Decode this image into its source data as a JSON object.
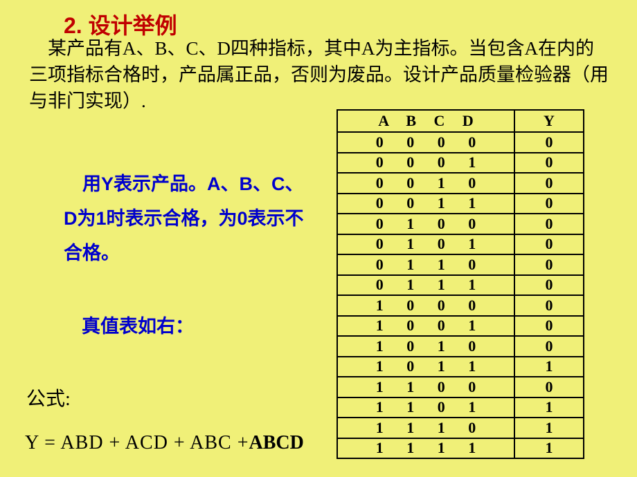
{
  "title": "2. 设计举例",
  "problem": "　某产品有A、B、C、D四种指标，其中A为主指标。当包含A在内的三项指标合格时，产品属正品，否则为废品。设计产品质量检验器（用与非门实现）.",
  "blue_text": "　用Y表示产品。A、B、C、D为1时表示合格，为0表示不合格。",
  "truth_label": "真值表如右：",
  "formula_label": "公式:",
  "formula_main": "Y = ABD + ACD + ABC ",
  "formula_plus": "+",
  "formula_abcd": "ABCD",
  "table": {
    "headers": {
      "abcd": "A  B  C  D",
      "y": "Y"
    },
    "rows": [
      {
        "abcd": "0 0 0 0",
        "y": "0"
      },
      {
        "abcd": "0 0 0 1",
        "y": "0"
      },
      {
        "abcd": "0 0 1 0",
        "y": "0"
      },
      {
        "abcd": "0 0 1 1",
        "y": "0"
      },
      {
        "abcd": "0 1 0 0",
        "y": "0"
      },
      {
        "abcd": "0 1 0 1",
        "y": "0"
      },
      {
        "abcd": "0 1 1 0",
        "y": "0"
      },
      {
        "abcd": "0 1 1 1",
        "y": "0"
      },
      {
        "abcd": "1 0 0 0",
        "y": "0"
      },
      {
        "abcd": "1 0 0 1",
        "y": "0"
      },
      {
        "abcd": "1 0 1 0",
        "y": "0"
      },
      {
        "abcd": "1 0 1 1",
        "y": "1"
      },
      {
        "abcd": "1 1 0 0",
        "y": "0"
      },
      {
        "abcd": "1 1 0 1",
        "y": "1"
      },
      {
        "abcd": "1 1 1 0",
        "y": "1"
      },
      {
        "abcd": "1 1 1 1",
        "y": "1"
      }
    ]
  },
  "colors": {
    "background": "#f0f078",
    "title_color": "#c00000",
    "body_color": "#000000",
    "blue_color": "#0000cc",
    "border_color": "#000000"
  },
  "fonts": {
    "title_size": 32,
    "body_size": 27,
    "table_size": 22,
    "formula_size": 28
  }
}
